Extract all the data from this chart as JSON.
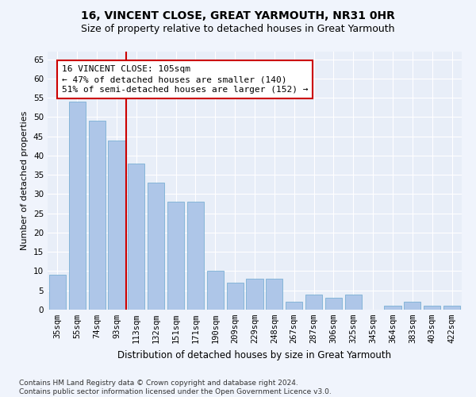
{
  "title": "16, VINCENT CLOSE, GREAT YARMOUTH, NR31 0HR",
  "subtitle": "Size of property relative to detached houses in Great Yarmouth",
  "xlabel": "Distribution of detached houses by size in Great Yarmouth",
  "ylabel": "Number of detached properties",
  "categories": [
    "35sqm",
    "55sqm",
    "74sqm",
    "93sqm",
    "113sqm",
    "132sqm",
    "151sqm",
    "171sqm",
    "190sqm",
    "209sqm",
    "229sqm",
    "248sqm",
    "267sqm",
    "287sqm",
    "306sqm",
    "325sqm",
    "345sqm",
    "364sqm",
    "383sqm",
    "403sqm",
    "422sqm"
  ],
  "values": [
    9,
    54,
    49,
    44,
    38,
    33,
    28,
    28,
    10,
    7,
    8,
    8,
    2,
    4,
    3,
    4,
    0,
    1,
    2,
    1,
    1
  ],
  "bar_color": "#aec6e8",
  "bar_edge_color": "#7ab0d4",
  "background_color": "#e8eef8",
  "grid_color": "#ffffff",
  "vline_color": "#cc0000",
  "vline_x_index": 3.5,
  "annotation_text": "16 VINCENT CLOSE: 105sqm\n← 47% of detached houses are smaller (140)\n51% of semi-detached houses are larger (152) →",
  "annotation_box_color": "#ffffff",
  "annotation_box_edge": "#cc0000",
  "ylim": [
    0,
    67
  ],
  "yticks": [
    0,
    5,
    10,
    15,
    20,
    25,
    30,
    35,
    40,
    45,
    50,
    55,
    60,
    65
  ],
  "footer": "Contains HM Land Registry data © Crown copyright and database right 2024.\nContains public sector information licensed under the Open Government Licence v3.0.",
  "title_fontsize": 10,
  "subtitle_fontsize": 9,
  "xlabel_fontsize": 8.5,
  "ylabel_fontsize": 8,
  "tick_fontsize": 7.5,
  "annot_fontsize": 8,
  "footer_fontsize": 6.5
}
